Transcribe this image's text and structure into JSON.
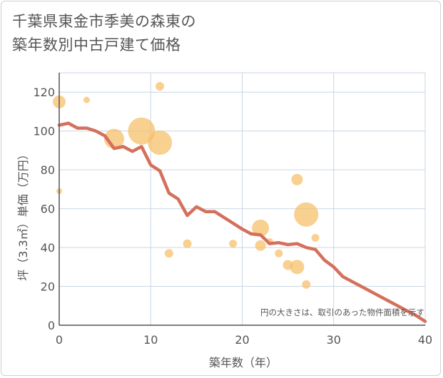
{
  "title": {
    "line1": "千葉県東金市季美の森東の",
    "line2": "築年数別中古戸建て価格"
  },
  "note": "円の大きさは、取引のあった物件面積を示す",
  "colors": {
    "line": "#d4705c",
    "bubble": "#f5c06b",
    "grid": "#c9d6e3",
    "axis": "#555555"
  },
  "chart_data": {
    "type": "scatter",
    "xlabel": "築年数（年）",
    "ylabel": "坪（3.3㎡）単価（万円）",
    "xlim": [
      0,
      40
    ],
    "ylim": [
      0,
      130
    ],
    "xticks": [
      0,
      10,
      20,
      30,
      40
    ],
    "yticks": [
      0,
      20,
      40,
      60,
      80,
      100,
      120
    ],
    "grid": true,
    "series": [
      {
        "type": "line",
        "points": [
          [
            0,
            103
          ],
          [
            1,
            104
          ],
          [
            2,
            101.5
          ],
          [
            3,
            101.5
          ],
          [
            4,
            100
          ],
          [
            5,
            97.5
          ],
          [
            6,
            91
          ],
          [
            7,
            92
          ],
          [
            8,
            89.5
          ],
          [
            9,
            92
          ],
          [
            10,
            82.5
          ],
          [
            11,
            79.5
          ],
          [
            12,
            68
          ],
          [
            13,
            65
          ],
          [
            14,
            56.5
          ],
          [
            15,
            61
          ],
          [
            16,
            58.5
          ],
          [
            17,
            58.5
          ],
          [
            18,
            55.5
          ],
          [
            19,
            52.5
          ],
          [
            20,
            49.5
          ],
          [
            21,
            47
          ],
          [
            22,
            46.5
          ],
          [
            23,
            42
          ],
          [
            24,
            42.5
          ],
          [
            25,
            41.5
          ],
          [
            26,
            42
          ],
          [
            27,
            40
          ],
          [
            28,
            39
          ],
          [
            29,
            33.5
          ],
          [
            30,
            30
          ],
          [
            31,
            25
          ],
          [
            32,
            22.5
          ],
          [
            33,
            20
          ],
          [
            34,
            17.5
          ],
          [
            35,
            15
          ],
          [
            36,
            12.5
          ],
          [
            37,
            10
          ],
          [
            38,
            7.5
          ],
          [
            39,
            5
          ],
          [
            40,
            2
          ]
        ]
      },
      {
        "type": "bubble",
        "points": [
          {
            "x": 0,
            "y": 115,
            "size": 9
          },
          {
            "x": 0,
            "y": 69,
            "size": 4
          },
          {
            "x": 3,
            "y": 116,
            "size": 4.5
          },
          {
            "x": 6,
            "y": 96,
            "size": 14
          },
          {
            "x": 9,
            "y": 100,
            "size": 19
          },
          {
            "x": 11,
            "y": 94,
            "size": 17
          },
          {
            "x": 11,
            "y": 123,
            "size": 6
          },
          {
            "x": 12,
            "y": 37,
            "size": 6
          },
          {
            "x": 14,
            "y": 42,
            "size": 6
          },
          {
            "x": 19,
            "y": 42,
            "size": 5.5
          },
          {
            "x": 22,
            "y": 50,
            "size": 12
          },
          {
            "x": 22,
            "y": 41,
            "size": 7.5
          },
          {
            "x": 23,
            "y": 43,
            "size": 5
          },
          {
            "x": 24,
            "y": 37,
            "size": 5.5
          },
          {
            "x": 25,
            "y": 31,
            "size": 7
          },
          {
            "x": 26,
            "y": 75,
            "size": 8
          },
          {
            "x": 26,
            "y": 30,
            "size": 10
          },
          {
            "x": 27,
            "y": 57,
            "size": 17
          },
          {
            "x": 27,
            "y": 21,
            "size": 6
          },
          {
            "x": 28,
            "y": 45,
            "size": 5.5
          }
        ]
      }
    ]
  }
}
